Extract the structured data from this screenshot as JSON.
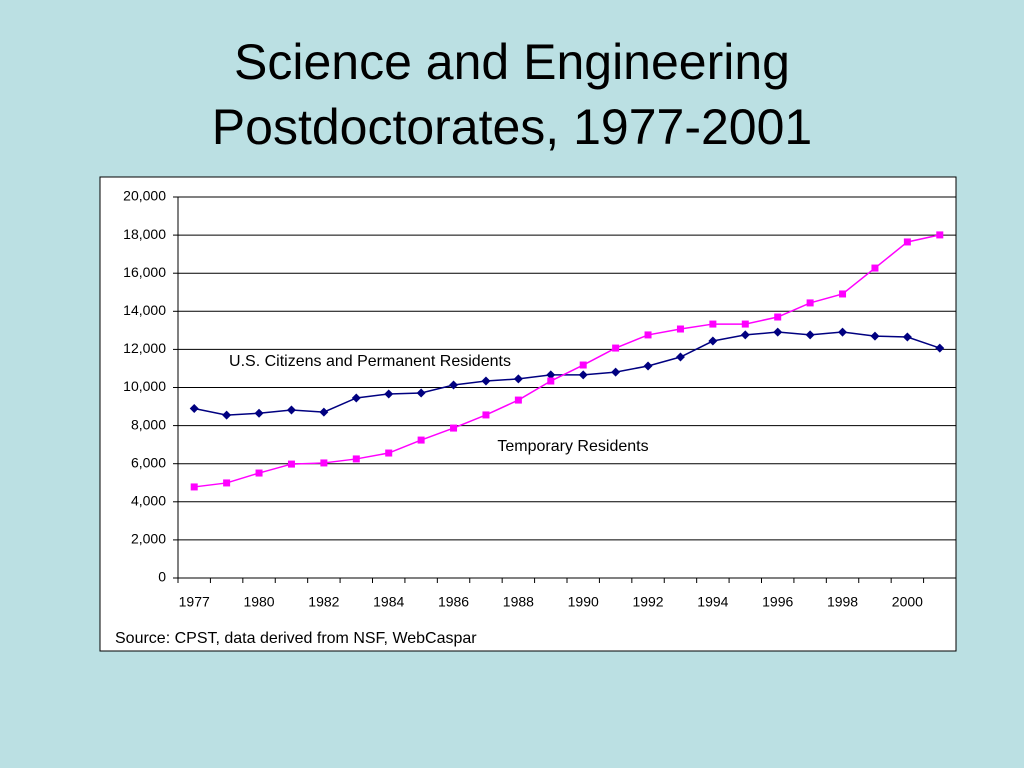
{
  "chart_data": {
    "type": "line",
    "title": [
      "Science and Engineering",
      "Postdoctorates, 1977-2001"
    ],
    "categories": [
      "1977",
      null,
      "1980",
      null,
      "1982",
      null,
      "1984",
      null,
      "1986",
      null,
      "1988",
      null,
      "1990",
      null,
      "1992",
      null,
      "1994",
      null,
      "1996",
      null,
      "1998",
      null,
      "2000",
      null
    ],
    "series": [
      {
        "name": "U.S. Citizens and Permanent Residents",
        "color": "#000080",
        "marker": "diamond",
        "values": [
          8900,
          8550,
          8650,
          8820,
          8710,
          9450,
          9660,
          9710,
          10130,
          10340,
          10450,
          10660,
          10660,
          10810,
          11130,
          11600,
          12440,
          12760,
          12910,
          12760,
          12910,
          12700,
          12650,
          12070
        ]
      },
      {
        "name": "Temporary Residents",
        "color": "#ff00ff",
        "marker": "square",
        "values": [
          4780,
          4990,
          5510,
          5980,
          6040,
          6250,
          6560,
          7240,
          7870,
          8560,
          9340,
          10340,
          11180,
          12070,
          12760,
          13070,
          13330,
          13330,
          13700,
          14440,
          14910,
          16270,
          17640,
          18010
        ]
      }
    ],
    "ylim": [
      0,
      20000
    ],
    "yticks": [
      0,
      {
        "value": 2000,
        "label": "2,000"
      },
      {
        "value": 4000,
        "label": "4,000"
      },
      {
        "value": 6000,
        "label": "6,000"
      },
      {
        "value": 8000,
        "label": "8,000"
      },
      {
        "value": 10000,
        "label": "10,000"
      },
      {
        "value": 12000,
        "label": "12,000"
      },
      {
        "value": 14000,
        "label": "14,000"
      },
      {
        "value": 16000,
        "label": "16,000"
      },
      {
        "value": 18000,
        "label": "18,000"
      },
      {
        "value": 20000,
        "label": "20,000"
      }
    ],
    "grid": true,
    "source": "Source:  CPST, data derived from NSF, WebCaspar"
  }
}
